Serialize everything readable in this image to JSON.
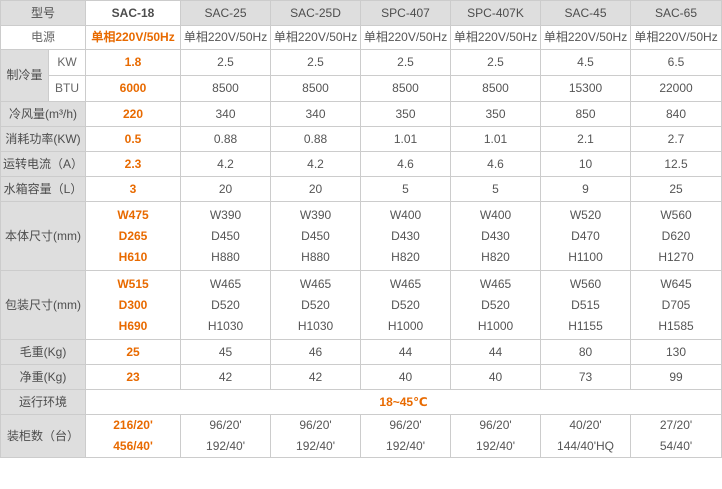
{
  "header": {
    "label": "型号",
    "models": [
      "SAC-18",
      "SAC-25",
      "SAC-25D",
      "SPC-407",
      "SPC-407K",
      "SAC-45",
      "SAC-65"
    ]
  },
  "power": {
    "label": "电源",
    "values": [
      "单相220V/50Hz",
      "单相220V/50Hz",
      "单相220V/50Hz",
      "单相220V/50Hz",
      "单相220V/50Hz",
      "单相220V/50Hz",
      "单相220V/50Hz"
    ]
  },
  "cooling": {
    "label": "制冷量",
    "kw_unit": "KW",
    "kw": [
      "1.8",
      "2.5",
      "2.5",
      "2.5",
      "2.5",
      "4.5",
      "6.5"
    ],
    "btu_unit": "BTU",
    "btu": [
      "6000",
      "8500",
      "8500",
      "8500",
      "8500",
      "15300",
      "22000"
    ]
  },
  "airflow": {
    "label": "冷风量(m³/h)",
    "values": [
      "220",
      "340",
      "340",
      "350",
      "350",
      "850",
      "840"
    ]
  },
  "consumption": {
    "label": "消耗功率(KW)",
    "values": [
      "0.5",
      "0.88",
      "0.88",
      "1.01",
      "1.01",
      "2.1",
      "2.7"
    ]
  },
  "current": {
    "label": "运转电流（A）",
    "values": [
      "2.3",
      "4.2",
      "4.2",
      "4.6",
      "4.6",
      "10",
      "12.5"
    ]
  },
  "tank": {
    "label": "水箱容量（L）",
    "values": [
      "3",
      "20",
      "20",
      "5",
      "5",
      "9",
      "25"
    ]
  },
  "body_size": {
    "label": "本体尺寸(mm)",
    "values": [
      [
        "W475",
        "D265",
        "H610"
      ],
      [
        "W390",
        "D450",
        "H880"
      ],
      [
        "W390",
        "D450",
        "H880"
      ],
      [
        "W400",
        "D430",
        "H820"
      ],
      [
        "W400",
        "D430",
        "H820"
      ],
      [
        "W520",
        "D470",
        "H1100"
      ],
      [
        "W560",
        "D620",
        "H1270"
      ]
    ]
  },
  "pack_size": {
    "label": "包装尺寸(mm)",
    "values": [
      [
        "W515",
        "D300",
        "H690"
      ],
      [
        "W465",
        "D520",
        "H1030"
      ],
      [
        "W465",
        "D520",
        "H1030"
      ],
      [
        "W465",
        "D520",
        "H1000"
      ],
      [
        "W465",
        "D520",
        "H1000"
      ],
      [
        "W560",
        "D515",
        "H1155"
      ],
      [
        "W645",
        "D705",
        "H1585"
      ]
    ]
  },
  "gross_weight": {
    "label": "毛重(Kg)",
    "values": [
      "25",
      "45",
      "46",
      "44",
      "44",
      "80",
      "130"
    ]
  },
  "net_weight": {
    "label": "净重(Kg)",
    "values": [
      "23",
      "42",
      "42",
      "40",
      "40",
      "73",
      "99"
    ]
  },
  "environment": {
    "label": "运行环境",
    "value": "18~45℃"
  },
  "container": {
    "label": "装柜数（台）",
    "values": [
      [
        "216/20'",
        "456/40'"
      ],
      [
        "96/20'",
        "192/40'"
      ],
      [
        "96/20'",
        "192/40'"
      ],
      [
        "96/20'",
        "192/40'"
      ],
      [
        "96/20'",
        "192/40'"
      ],
      [
        "40/20'",
        "144/40'HQ"
      ],
      [
        "27/20'",
        "54/40'"
      ]
    ]
  },
  "colors": {
    "highlight": "#e86a00",
    "label_bg": "#dedede",
    "border": "#cccccc",
    "text": "#555555"
  }
}
